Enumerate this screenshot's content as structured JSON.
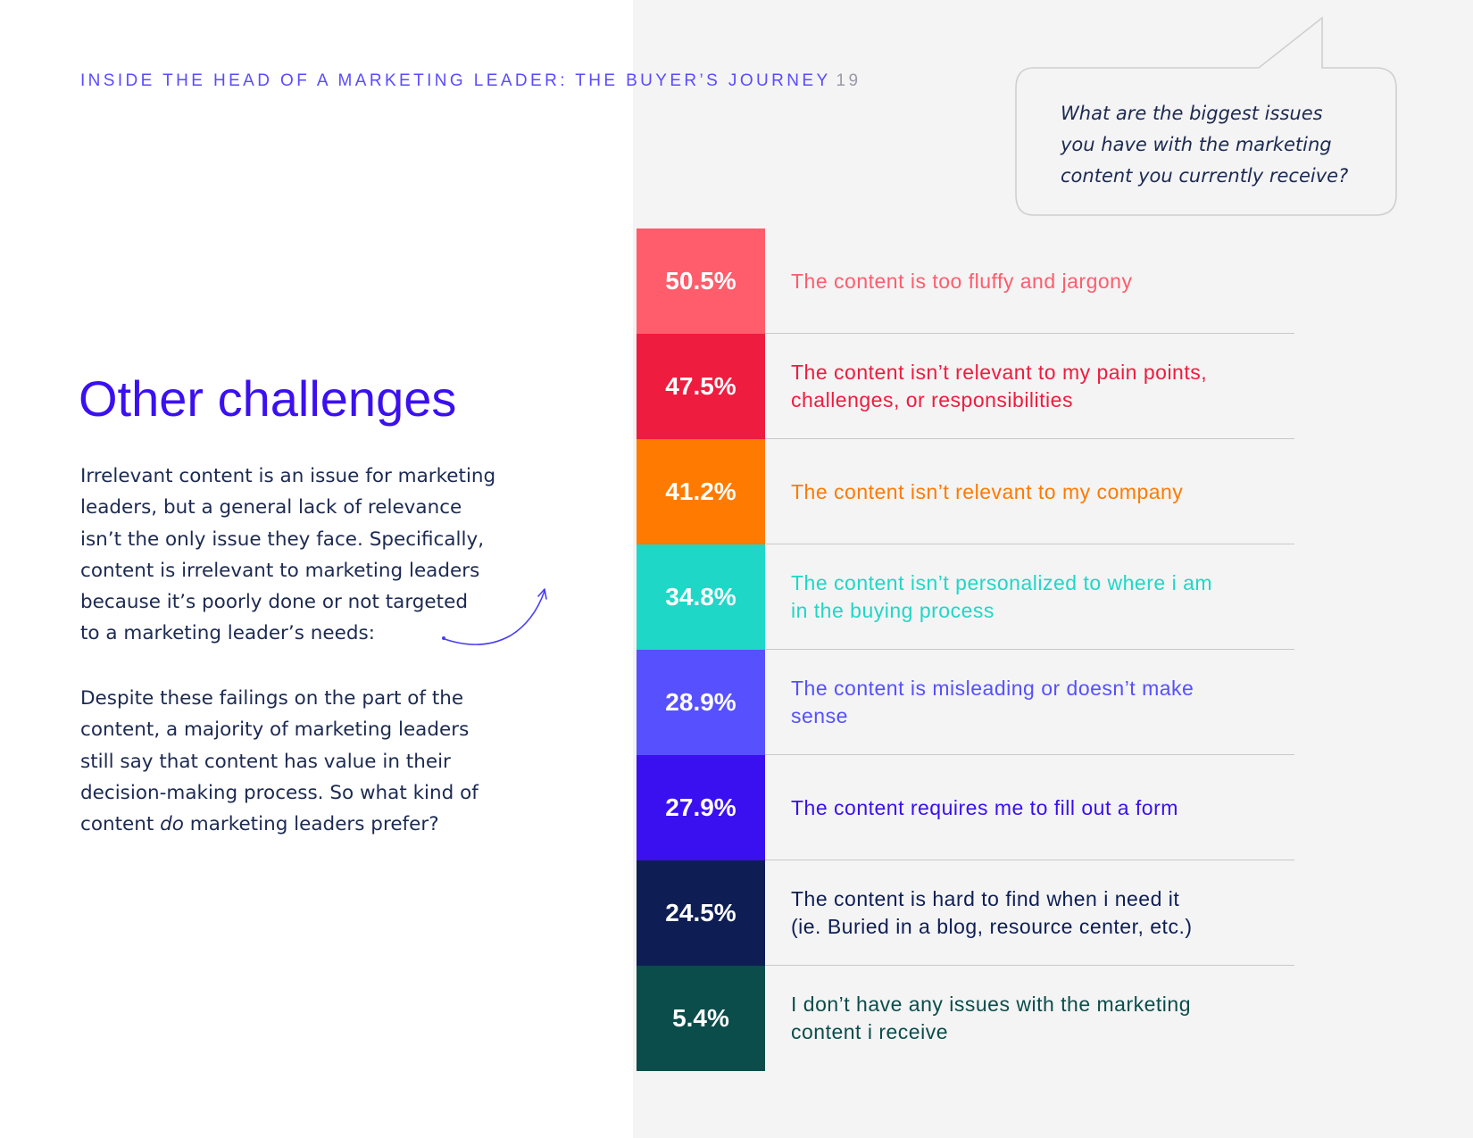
{
  "header": {
    "title": "INSIDE THE HEAD OF A MARKETING LEADER: THE BUYER’S JOURNEY",
    "page_number": "19"
  },
  "question_bubble": {
    "lines": [
      "What are the biggest issues",
      "you have with the marketing",
      "content you currently receive?"
    ]
  },
  "section": {
    "title": "Other challenges",
    "paragraph1_lines": [
      "Irrelevant content is an issue for marketing",
      "leaders, but a general lack of relevance",
      "isn’t the only issue they face. Specifically,",
      "content is irrelevant to marketing leaders",
      "because it’s poorly done or not targeted",
      "to a marketing leader’s needs:"
    ],
    "paragraph2_lines": [
      "Despite these failings on the part of the",
      "content, a majority of marketing leaders",
      "still say that content has value in their",
      "decision-making process. So what kind of"
    ],
    "paragraph2_last": {
      "before": "content ",
      "emphasis": "do",
      "after": " marketing leaders prefer?"
    }
  },
  "chart_data": {
    "type": "table",
    "title": "What are the biggest issues you have with the marketing content you currently receive?",
    "items": [
      {
        "value": "50.5%",
        "color": "#ff5c6c",
        "lines": [
          "The content is too fluffy and jargony"
        ]
      },
      {
        "value": "47.5%",
        "color": "#ee1c3f",
        "lines": [
          "The content isn’t relevant to my pain points,",
          "challenges, or responsibilities"
        ]
      },
      {
        "value": "41.2%",
        "color": "#ff7a00",
        "lines": [
          "The content isn’t relevant to my company"
        ]
      },
      {
        "value": "34.8%",
        "color": "#1fd7c6",
        "lines": [
          "The content isn’t personalized to where i am",
          "in the buying process"
        ]
      },
      {
        "value": "28.9%",
        "color": "#5650ff",
        "lines": [
          "The content is misleading or doesn’t make",
          "sense"
        ]
      },
      {
        "value": "27.9%",
        "color": "#3a0ff0",
        "lines": [
          "The content requires me to fill out a form"
        ]
      },
      {
        "value": "24.5%",
        "color": "#0e1e55",
        "lines": [
          "The content is hard to find when i need it",
          "(ie. Buried in a blog, resource center, etc.)"
        ]
      },
      {
        "value": "5.4%",
        "color": "#0a4d4b",
        "lines": [
          "I don’t have any issues with the marketing",
          "content i receive"
        ]
      }
    ]
  }
}
